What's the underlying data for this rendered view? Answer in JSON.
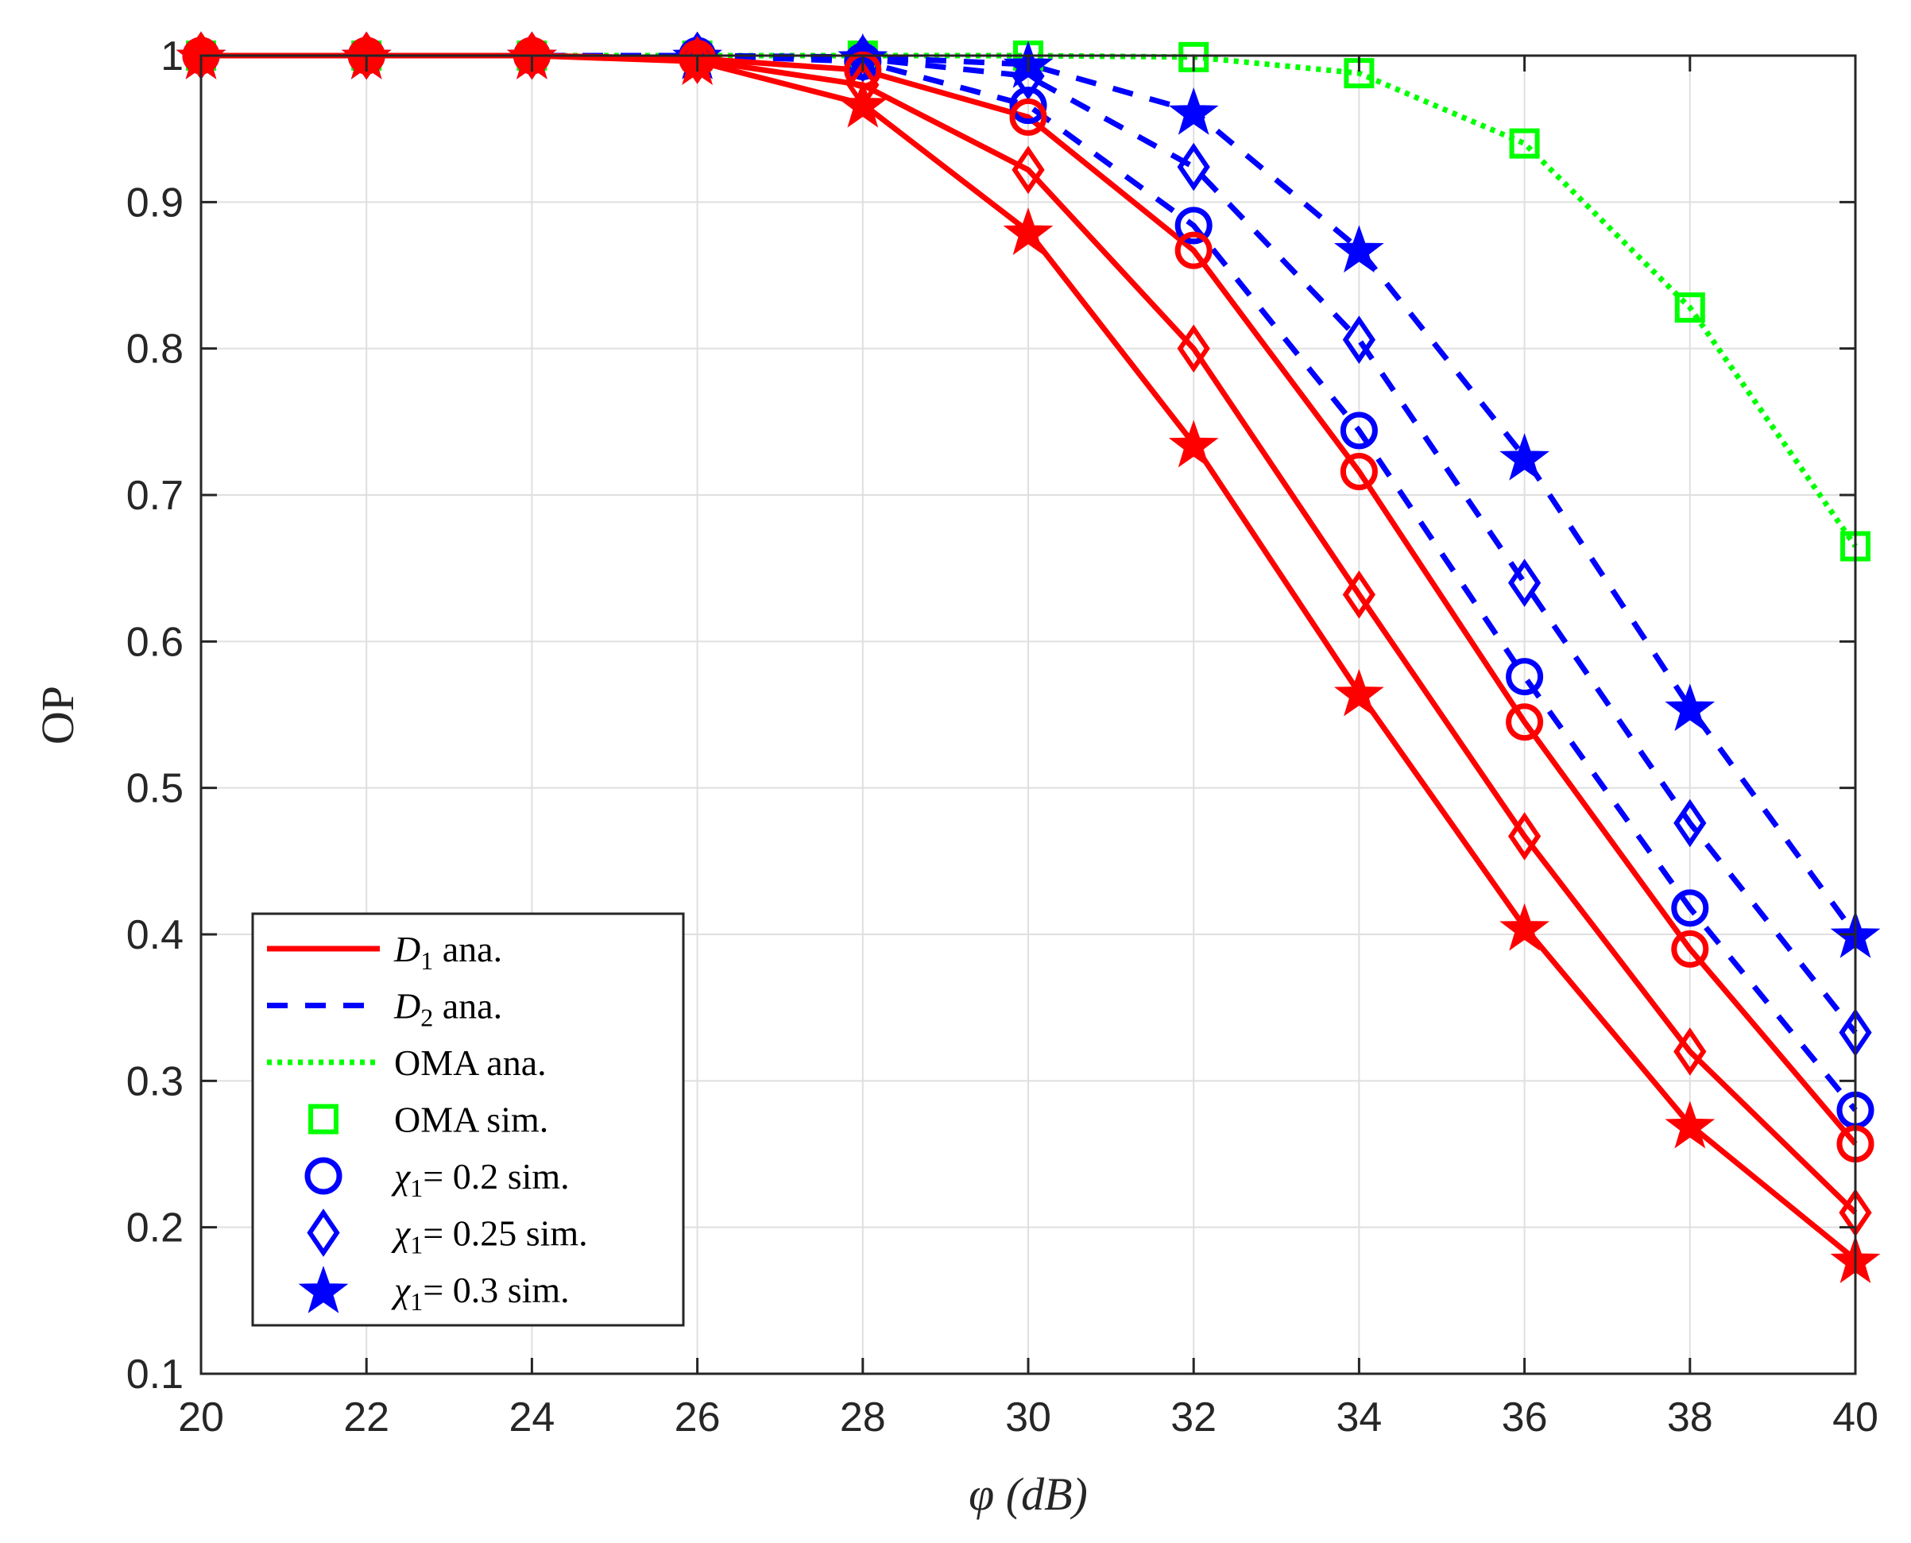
{
  "chart_data": {
    "type": "line",
    "xlabel": "φ (dB)",
    "ylabel": "OP",
    "xlim": [
      20,
      40
    ],
    "ylim": [
      0.1,
      1.0
    ],
    "x_ticks": [
      "20",
      "22",
      "24",
      "26",
      "28",
      "30",
      "32",
      "34",
      "36",
      "38",
      "40"
    ],
    "y_ticks": [
      "0.1",
      "0.2",
      "0.3",
      "0.4",
      "0.5",
      "0.6",
      "0.7",
      "0.8",
      "0.9",
      "1"
    ],
    "grid": true,
    "legend_position": "bottom-left",
    "colors": {
      "red": "#ff0000",
      "blue": "#0000ff",
      "green": "#00ff00"
    },
    "x": [
      20,
      22,
      24,
      26,
      28,
      30,
      32,
      34,
      36,
      38,
      40
    ],
    "series": [
      {
        "name": "D1 chi=0.2",
        "group": "D1",
        "marker": "circle",
        "color": "#ff0000",
        "values": [
          1.0,
          1.0,
          1.0,
          0.998,
          0.99,
          0.958,
          0.867,
          0.716,
          0.545,
          0.39,
          0.257
        ]
      },
      {
        "name": "D1 chi=0.25",
        "group": "D1",
        "marker": "diamond",
        "color": "#ff0000",
        "values": [
          1.0,
          1.0,
          1.0,
          0.997,
          0.98,
          0.922,
          0.8,
          0.632,
          0.467,
          0.32,
          0.21
        ]
      },
      {
        "name": "D1 chi=0.3",
        "group": "D1",
        "marker": "star",
        "color": "#ff0000",
        "values": [
          1.0,
          1.0,
          1.0,
          0.996,
          0.967,
          0.88,
          0.735,
          0.565,
          0.405,
          0.27,
          0.178
        ]
      },
      {
        "name": "D2 chi=0.2",
        "group": "D2",
        "marker": "circle",
        "color": "#0000ff",
        "values": [
          1.0,
          1.0,
          1.0,
          1.0,
          0.996,
          0.966,
          0.884,
          0.744,
          0.576,
          0.418,
          0.28
        ]
      },
      {
        "name": "D2 chi=0.25",
        "group": "D2",
        "marker": "diamond",
        "color": "#0000ff",
        "values": [
          1.0,
          1.0,
          1.0,
          1.0,
          0.998,
          0.986,
          0.924,
          0.806,
          0.64,
          0.476,
          0.333
        ]
      },
      {
        "name": "D2 chi=0.3",
        "group": "D2",
        "marker": "star",
        "color": "#0000ff",
        "values": [
          1.0,
          1.0,
          1.0,
          1.0,
          0.999,
          0.994,
          0.962,
          0.868,
          0.726,
          0.555,
          0.4
        ]
      },
      {
        "name": "OMA",
        "group": "OMA",
        "marker": "square",
        "color": "#00ff00",
        "values": [
          1.0,
          1.0,
          1.0,
          1.0,
          1.0,
          1.0,
          0.999,
          0.988,
          0.94,
          0.828,
          0.665
        ]
      }
    ],
    "legend": [
      {
        "label_main": "D",
        "label_sub": "1",
        "label_rest": " ana.",
        "style": "solid",
        "color": "#ff0000"
      },
      {
        "label_main": "D",
        "label_sub": "2",
        "label_rest": " ana.",
        "style": "dashed",
        "color": "#0000ff"
      },
      {
        "label_main": "",
        "label_sub": "",
        "label_rest": "OMA ana.",
        "style": "dotted",
        "color": "#00ff00"
      },
      {
        "label_main": "",
        "label_sub": "",
        "label_rest": "OMA sim.",
        "style": "square",
        "color": "#00ff00"
      },
      {
        "label_main": "χ",
        "label_sub": "1",
        "label_rest": "= 0.2 sim.",
        "style": "circle",
        "color": "#0000ff"
      },
      {
        "label_main": "χ",
        "label_sub": "1",
        "label_rest": "= 0.25 sim.",
        "style": "diamond",
        "color": "#0000ff"
      },
      {
        "label_main": "χ",
        "label_sub": "1",
        "label_rest": "= 0.3 sim.",
        "style": "star",
        "color": "#0000ff"
      }
    ]
  }
}
